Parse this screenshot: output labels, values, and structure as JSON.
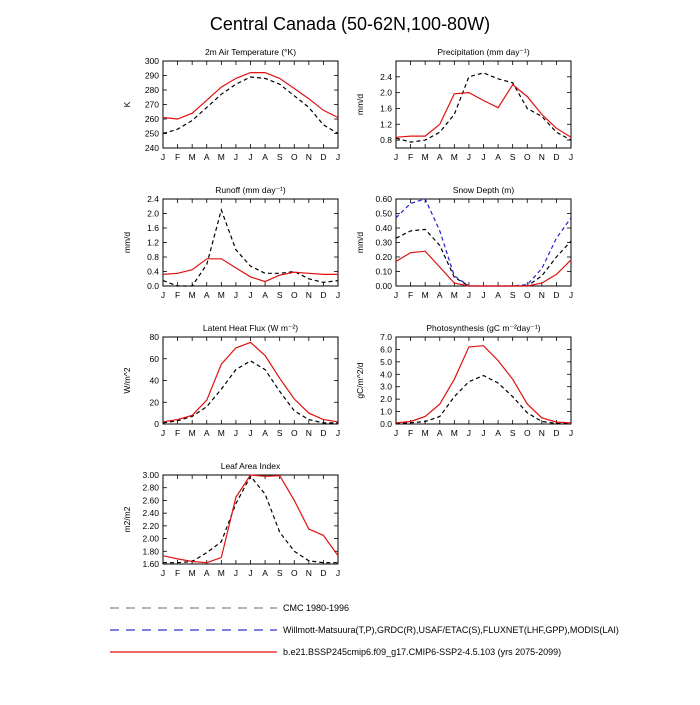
{
  "figure": {
    "title": "Central Canada (50-62N,100-80W)",
    "colors": {
      "obs": "#000000",
      "obs2": "#2222cc",
      "model": "#e01010"
    }
  },
  "legend": {
    "items": [
      {
        "label": "CMC 1980-1996",
        "color": "#888888",
        "style": "dashed"
      },
      {
        "label": "Willmott-Matsuura(T,P),GRDC(R),USAF/ETAC(S),FLUXNET(LHF,GPP),MODIS(LAI)",
        "color": "#3333cc",
        "style": "dashed"
      },
      {
        "label": "b.e21.BSSP245cmip6.f09_g17.CMIP6-SSP2-4.5.103 (yrs 2075-2099)",
        "color": "#e01010",
        "style": "solid"
      }
    ]
  },
  "chart_data": [
    {
      "type": "line",
      "title": "2m Air Temperature (°K)",
      "ylabel": "K",
      "x": [
        "J",
        "F",
        "M",
        "A",
        "M",
        "J",
        "J",
        "A",
        "S",
        "O",
        "N",
        "D",
        "J"
      ],
      "ylim": [
        240,
        300
      ],
      "yticks": [
        "240",
        "250",
        "260",
        "270",
        "280",
        "290",
        "300"
      ],
      "series": [
        {
          "style": "dashed",
          "color": "#000000",
          "values": [
            250,
            253,
            259,
            268,
            277,
            284,
            289,
            288,
            284,
            276,
            268,
            256,
            250
          ]
        },
        {
          "style": "solid",
          "color": "#e01010",
          "values": [
            261,
            260,
            264,
            273,
            282,
            288,
            292,
            292,
            288,
            281,
            274,
            266,
            261
          ]
        }
      ]
    },
    {
      "type": "line",
      "title": "Precipitation (mm day⁻¹)",
      "ylabel": "mm/d",
      "x": [
        "J",
        "F",
        "M",
        "A",
        "M",
        "J",
        "J",
        "A",
        "S",
        "O",
        "N",
        "D",
        "J"
      ],
      "ylim": [
        0.6,
        2.8
      ],
      "yticks": [
        "0.8",
        "1.2",
        "1.6",
        "2.0",
        "2.4"
      ],
      "series": [
        {
          "style": "dashed",
          "color": "#000000",
          "values": [
            0.85,
            0.75,
            0.8,
            1.0,
            1.45,
            2.4,
            2.5,
            2.35,
            2.25,
            1.6,
            1.4,
            1.0,
            0.8
          ]
        },
        {
          "style": "solid",
          "color": "#e01010",
          "values": [
            0.87,
            0.9,
            0.9,
            1.2,
            1.97,
            2.0,
            1.8,
            1.62,
            2.2,
            1.9,
            1.45,
            1.1,
            0.87
          ]
        }
      ]
    },
    {
      "type": "line",
      "title": "Runoff (mm day⁻¹)",
      "ylabel": "mm/d",
      "x": [
        "J",
        "F",
        "M",
        "A",
        "M",
        "J",
        "J",
        "A",
        "S",
        "O",
        "N",
        "D",
        "J"
      ],
      "ylim": [
        0.0,
        2.4
      ],
      "yticks": [
        "0.0",
        "0.4",
        "0.8",
        "1.2",
        "1.6",
        "2.0",
        "2.4"
      ],
      "series": [
        {
          "style": "dashed",
          "color": "#000000",
          "values": [
            0.15,
            0.0,
            0.0,
            0.6,
            2.1,
            1.0,
            0.55,
            0.35,
            0.35,
            0.4,
            0.2,
            0.1,
            0.15
          ]
        },
        {
          "style": "solid",
          "color": "#e01010",
          "values": [
            0.32,
            0.35,
            0.45,
            0.75,
            0.75,
            0.5,
            0.25,
            0.12,
            0.3,
            0.38,
            0.35,
            0.32,
            0.32
          ]
        }
      ]
    },
    {
      "type": "line",
      "title": "Snow Depth (m)",
      "ylabel": "mm/d",
      "x": [
        "J",
        "F",
        "M",
        "A",
        "M",
        "J",
        "J",
        "A",
        "S",
        "O",
        "N",
        "D",
        "J"
      ],
      "ylim": [
        0.0,
        0.6
      ],
      "yticks": [
        "0.00",
        "0.10",
        "0.20",
        "0.30",
        "0.40",
        "0.50",
        "0.60"
      ],
      "series": [
        {
          "style": "dashed",
          "color": "#000000",
          "values": [
            0.33,
            0.38,
            0.39,
            0.28,
            0.06,
            0.0,
            0.0,
            0.0,
            0.0,
            0.0,
            0.07,
            0.2,
            0.31
          ]
        },
        {
          "style": "dashed",
          "color": "#2222cc",
          "values": [
            0.47,
            0.57,
            0.6,
            0.38,
            0.07,
            0.0,
            0.0,
            0.0,
            0.0,
            0.01,
            0.12,
            0.33,
            0.47
          ]
        },
        {
          "style": "solid",
          "color": "#e01010",
          "values": [
            0.17,
            0.23,
            0.24,
            0.13,
            0.02,
            0.0,
            0.0,
            0.0,
            0.0,
            0.0,
            0.02,
            0.08,
            0.18
          ]
        }
      ]
    },
    {
      "type": "line",
      "title": "Latent Heat Flux (W m⁻²)",
      "ylabel": "W/m^2",
      "x": [
        "J",
        "F",
        "M",
        "A",
        "M",
        "J",
        "J",
        "A",
        "S",
        "O",
        "N",
        "D",
        "J"
      ],
      "ylim": [
        0,
        80
      ],
      "yticks": [
        "0",
        "20",
        "40",
        "60",
        "80"
      ],
      "series": [
        {
          "style": "dashed",
          "color": "#000000",
          "values": [
            1,
            3,
            7,
            16,
            32,
            50,
            58,
            50,
            30,
            12,
            4,
            1,
            1
          ]
        },
        {
          "style": "solid",
          "color": "#e01010",
          "values": [
            2,
            4,
            8,
            22,
            55,
            70,
            75,
            63,
            42,
            23,
            10,
            4,
            2
          ]
        }
      ]
    },
    {
      "type": "line",
      "title": "Photosynthesis (gC m⁻²day⁻¹)",
      "ylabel": "gC/m^2/d",
      "x": [
        "J",
        "F",
        "M",
        "A",
        "M",
        "J",
        "J",
        "A",
        "S",
        "O",
        "N",
        "D",
        "J"
      ],
      "ylim": [
        0.0,
        7.0
      ],
      "yticks": [
        "0.0",
        "1.0",
        "2.0",
        "3.0",
        "4.0",
        "5.0",
        "6.0",
        "7.0"
      ],
      "series": [
        {
          "style": "dashed",
          "color": "#000000",
          "values": [
            0.05,
            0.1,
            0.2,
            0.6,
            2.2,
            3.4,
            3.9,
            3.3,
            2.2,
            0.9,
            0.2,
            0.05,
            0.05
          ]
        },
        {
          "style": "solid",
          "color": "#e01010",
          "values": [
            0.1,
            0.2,
            0.6,
            1.6,
            3.6,
            6.2,
            6.3,
            5.1,
            3.6,
            1.6,
            0.5,
            0.15,
            0.1
          ]
        }
      ]
    },
    {
      "type": "line",
      "title": "Leaf Area Index",
      "ylabel": "m2/m2",
      "x": [
        "J",
        "F",
        "M",
        "A",
        "M",
        "J",
        "J",
        "A",
        "S",
        "O",
        "N",
        "D",
        "J"
      ],
      "ylim": [
        1.6,
        3.0
      ],
      "yticks": [
        "1.60",
        "1.80",
        "2.00",
        "2.20",
        "2.40",
        "2.60",
        "2.80",
        "3.00"
      ],
      "series": [
        {
          "style": "dashed",
          "color": "#000000",
          "values": [
            1.62,
            1.62,
            1.64,
            1.78,
            1.95,
            2.55,
            2.98,
            2.7,
            2.1,
            1.8,
            1.65,
            1.62,
            1.62
          ]
        },
        {
          "style": "solid",
          "color": "#e01010",
          "values": [
            1.73,
            1.68,
            1.64,
            1.62,
            1.7,
            2.65,
            3.0,
            2.98,
            2.99,
            2.6,
            2.15,
            2.05,
            1.73
          ]
        }
      ]
    }
  ]
}
